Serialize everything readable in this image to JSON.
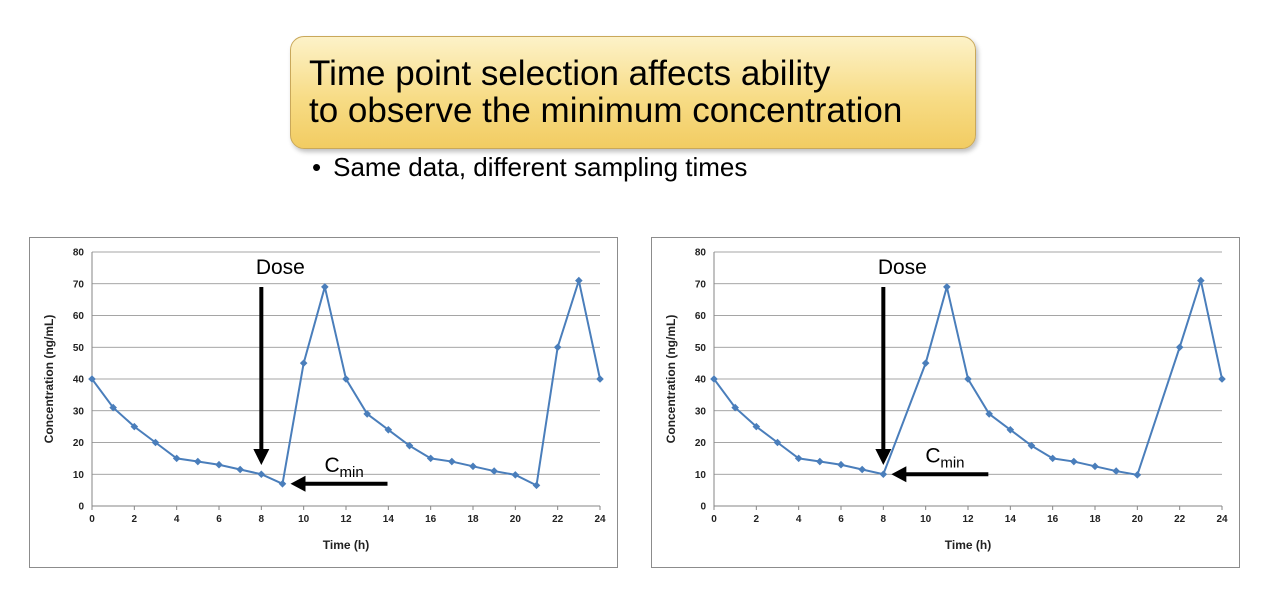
{
  "slide": {
    "title_lines": [
      "Time point selection affects ability",
      "to observe the minimum concentration"
    ],
    "bullet": "Same data, different sampling times"
  },
  "chart_data": [
    {
      "type": "line",
      "xlabel": "Time (h)",
      "ylabel": "Concentration (ng/mL)",
      "xlim": [
        0,
        24
      ],
      "ylim": [
        0,
        80
      ],
      "x_ticks": [
        0,
        2,
        4,
        6,
        8,
        10,
        12,
        14,
        16,
        18,
        20,
        22,
        24
      ],
      "y_ticks": [
        0,
        10,
        20,
        30,
        40,
        50,
        60,
        70,
        80
      ],
      "grid": "horizontal",
      "legend": "none",
      "series_color": "#4a7ebb",
      "series": [
        {
          "x": [
            0,
            1,
            2,
            3,
            4,
            5,
            6,
            7,
            8,
            9,
            10,
            11,
            12,
            13,
            14,
            15,
            16,
            17,
            18,
            19,
            20,
            21,
            22,
            23,
            24
          ],
          "y": [
            40,
            31,
            25,
            20,
            15,
            14,
            13,
            11.5,
            10,
            7,
            45,
            69,
            40,
            29,
            24,
            19,
            15,
            14,
            12.5,
            11,
            9.8,
            6.5,
            50,
            71,
            40
          ]
        }
      ],
      "annotations": [
        {
          "text": "Dose",
          "type": "down-arrow",
          "x": 8
        },
        {
          "text": "C",
          "subscript": "min",
          "type": "left-arrow",
          "x": 9,
          "y": 7
        }
      ]
    },
    {
      "type": "line",
      "xlabel": "Time (h)",
      "ylabel": "Concentration (ng/mL)",
      "xlim": [
        0,
        24
      ],
      "ylim": [
        0,
        80
      ],
      "x_ticks": [
        0,
        2,
        4,
        6,
        8,
        10,
        12,
        14,
        16,
        18,
        20,
        22,
        24
      ],
      "y_ticks": [
        0,
        10,
        20,
        30,
        40,
        50,
        60,
        70,
        80
      ],
      "grid": "horizontal",
      "legend": "none",
      "series_color": "#4a7ebb",
      "series": [
        {
          "x": [
            0,
            1,
            2,
            3,
            4,
            5,
            6,
            7,
            8,
            10,
            11,
            12,
            13,
            14,
            15,
            16,
            17,
            18,
            19,
            20,
            22,
            23,
            24
          ],
          "y": [
            40,
            31,
            25,
            20,
            15,
            14,
            13,
            11.5,
            10,
            45,
            69,
            40,
            29,
            24,
            19,
            15,
            14,
            12.5,
            11,
            9.8,
            50,
            71,
            40
          ]
        }
      ],
      "annotations": [
        {
          "text": "Dose",
          "type": "down-arrow",
          "x": 8
        },
        {
          "text": "C",
          "subscript": "min",
          "type": "left-arrow",
          "x": 8,
          "y": 10
        }
      ]
    }
  ]
}
